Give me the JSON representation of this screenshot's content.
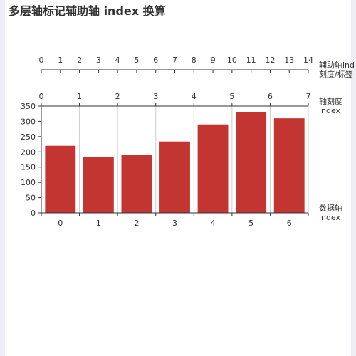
{
  "title": "多层轴标记辅助轴 index 换算",
  "colors": {
    "bar": "#c23531",
    "axis": "#333333",
    "grid": "#cccccc",
    "text": "#333333"
  },
  "axis_names": {
    "aux": [
      "辅助轴ind",
      "刻度/标签"
    ],
    "tick": [
      "轴刻度",
      "index"
    ],
    "data": [
      "数据轴",
      "index"
    ]
  },
  "chart_data": {
    "type": "bar",
    "title": "多层轴标记辅助轴 index 换算",
    "categories": [
      "0",
      "1",
      "2",
      "3",
      "4",
      "5",
      "6"
    ],
    "values": [
      220,
      182,
      191,
      234,
      290,
      330,
      310
    ],
    "ylim": [
      0,
      350
    ],
    "yticks": [
      0,
      50,
      100,
      150,
      200,
      250,
      300,
      350
    ],
    "aux_axis_ticks": [
      0,
      1,
      2,
      3,
      4,
      5,
      6,
      7,
      8,
      9,
      10,
      11,
      12,
      13,
      14
    ],
    "tick_axis_ticks": [
      0,
      1,
      2,
      3,
      4,
      5,
      6,
      7
    ],
    "grid": true,
    "legend": "none"
  }
}
